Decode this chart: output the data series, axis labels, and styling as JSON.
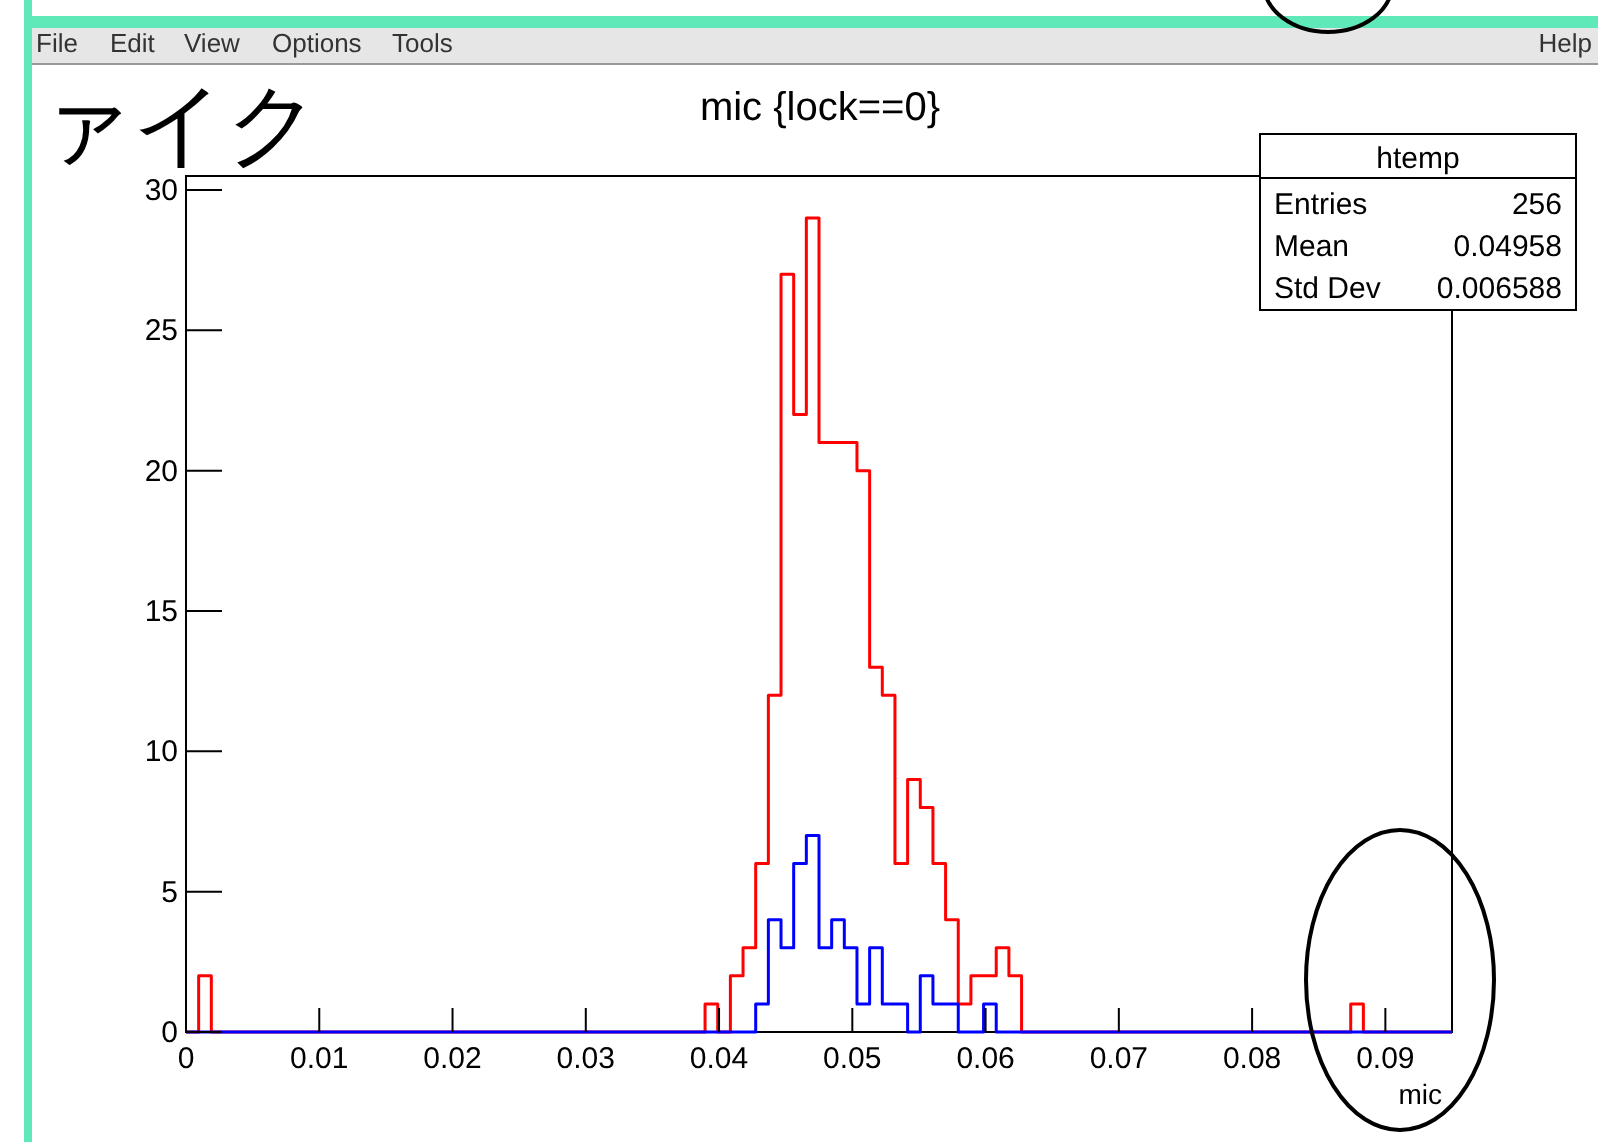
{
  "chart_data": {
    "type": "histogram",
    "title": "mic {lock==0}",
    "xlabel": "mic",
    "bins": [
      0,
      0.00095,
      0.0019,
      0.00285,
      0.0038,
      0.00475,
      0.0057,
      0.00665,
      0.0076,
      0.00855,
      0.0095,
      0.01045,
      0.0114,
      0.01235,
      0.0133,
      0.01425,
      0.0152,
      0.01615,
      0.0171,
      0.01805,
      0.019,
      0.01995,
      0.0209,
      0.02185,
      0.0228,
      0.02375,
      0.0247,
      0.02565,
      0.0266,
      0.02755,
      0.0285,
      0.02945,
      0.0304,
      0.03135,
      0.0323,
      0.03325,
      0.0342,
      0.03515,
      0.0361,
      0.03705,
      0.038,
      0.03895,
      0.0399,
      0.04085,
      0.0418,
      0.04275,
      0.0437,
      0.04465,
      0.0456,
      0.04655,
      0.0475,
      0.04845,
      0.0494,
      0.05035,
      0.0513,
      0.05225,
      0.0532,
      0.05415,
      0.0551,
      0.05605,
      0.057,
      0.05795,
      0.0589,
      0.05985,
      0.0608,
      0.06175,
      0.0627,
      0.06365,
      0.0646,
      0.06555,
      0.0665,
      0.06745,
      0.0684,
      0.06935,
      0.0703,
      0.07125,
      0.0722,
      0.07315,
      0.0741,
      0.07505,
      0.076,
      0.07695,
      0.0779,
      0.07885,
      0.0798,
      0.08075,
      0.0817,
      0.08265,
      0.0836,
      0.08455,
      0.0855,
      0.08645,
      0.0874,
      0.08835,
      0.0893,
      0.09025,
      0.0912,
      0.09215,
      0.0931,
      0.09405,
      0.095
    ],
    "series": [
      {
        "color": "#ff0000",
        "values": [
          0,
          2,
          0,
          0,
          0,
          0,
          0,
          0,
          0,
          0,
          0,
          0,
          0,
          0,
          0,
          0,
          0,
          0,
          0,
          0,
          0,
          0,
          0,
          0,
          0,
          0,
          0,
          0,
          0,
          0,
          0,
          0,
          0,
          0,
          0,
          0,
          0,
          0,
          0,
          0,
          0,
          1,
          0,
          2,
          3,
          6,
          12,
          27,
          22,
          29,
          21,
          21,
          21,
          20,
          13,
          12,
          6,
          9,
          8,
          6,
          4,
          1,
          2,
          2,
          3,
          2,
          0,
          0,
          0,
          0,
          0,
          0,
          0,
          0,
          0,
          0,
          0,
          0,
          0,
          0,
          0,
          0,
          0,
          0,
          0,
          0,
          0,
          0,
          0,
          0,
          0,
          0,
          1,
          0,
          0,
          0,
          0,
          0,
          0,
          0
        ]
      },
      {
        "color": "#0000ff",
        "values": [
          0,
          0,
          0,
          0,
          0,
          0,
          0,
          0,
          0,
          0,
          0,
          0,
          0,
          0,
          0,
          0,
          0,
          0,
          0,
          0,
          0,
          0,
          0,
          0,
          0,
          0,
          0,
          0,
          0,
          0,
          0,
          0,
          0,
          0,
          0,
          0,
          0,
          0,
          0,
          0,
          0,
          0,
          0,
          0,
          0,
          1,
          4,
          3,
          6,
          7,
          3,
          4,
          3,
          1,
          3,
          1,
          1,
          0,
          2,
          1,
          1,
          0,
          0,
          1,
          0,
          0,
          0,
          0,
          0,
          0,
          0,
          0,
          0,
          0,
          0,
          0,
          0,
          0,
          0,
          0,
          0,
          0,
          0,
          0,
          0,
          0,
          0,
          0,
          0,
          0,
          0,
          0,
          0,
          0,
          0,
          0,
          0,
          0,
          0,
          0
        ]
      }
    ],
    "xlim": [
      0,
      0.095
    ],
    "ylim": [
      0,
      30.5
    ],
    "xticks": [
      0,
      0.01,
      0.02,
      0.03,
      0.04,
      0.05,
      0.06,
      0.07,
      0.08,
      0.09
    ],
    "yticks": [
      0,
      5,
      10,
      15,
      20,
      25,
      30
    ],
    "grid": false,
    "annotations": [
      "ァイク",
      "File",
      "Edit",
      "View",
      "Options",
      "Tools",
      "Help",
      "htemp",
      "Entries",
      "256",
      "Mean",
      "0.04958",
      "Std Dev",
      "0.006588"
    ]
  }
}
